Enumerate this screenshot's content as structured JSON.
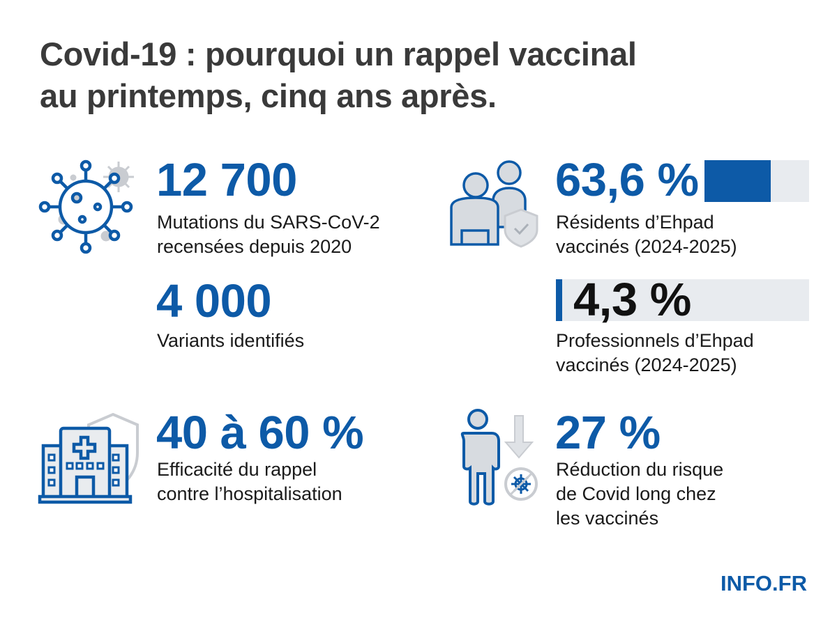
{
  "title": {
    "line1": "Covid-19 : pourquoi un rappel vaccinal",
    "line2": "au printemps, cinq ans après."
  },
  "stats": {
    "mutations": {
      "value": "12 700",
      "label1": "Mutations du SARS-CoV-2",
      "label2": "recensées depuis 2020",
      "icon": "virus-icon"
    },
    "variants": {
      "value": "4 000",
      "label1": "Variants identifiés"
    },
    "efficacy": {
      "value": "40 à 60 %",
      "label1": "Efficacité du rappel",
      "label2": "contre l’hospitalisation",
      "icon": "hospital-shield-icon"
    },
    "residents": {
      "value": "63,6 %",
      "percent": 63.6,
      "label1": "Résidents d’Ehpad",
      "label2": "vaccinés (2024-2025)",
      "icon": "elderly-caregiver-shield-icon"
    },
    "professionals": {
      "value": "4,3 %",
      "percent": 4.3,
      "label1": "Professionnels d’Ehpad",
      "label2": "vaccinés (2024-2025)"
    },
    "long_covid": {
      "value": "27 %",
      "label1": "Réduction du risque",
      "label2": "de Covid long chez",
      "label3": "les vaccinés",
      "icon": "person-risk-reduction-icon"
    }
  },
  "brand": "INFO.FR",
  "colors": {
    "accent": "#0d5aa7",
    "title": "#3a3a3a",
    "text": "#1a1a1a",
    "track": "#e8ebef",
    "icon_gray": "#c9ccd1"
  }
}
